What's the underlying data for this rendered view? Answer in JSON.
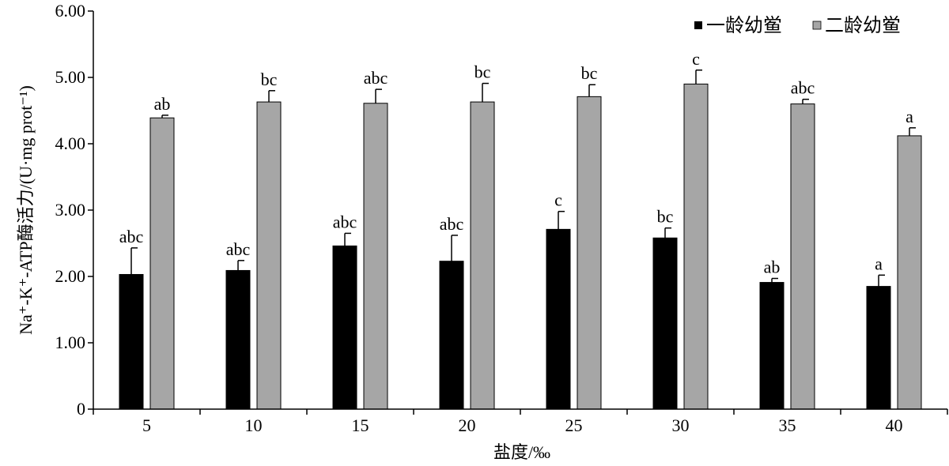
{
  "chart_data": {
    "type": "bar",
    "title": "",
    "xlabel": "盐度/‰",
    "ylabel": "Na⁺-K⁺-ATP酶活力/(U·mg prot⁻¹)",
    "categories": [
      "5",
      "10",
      "15",
      "20",
      "25",
      "30",
      "35",
      "40"
    ],
    "ylim": [
      0,
      6
    ],
    "yticks": [
      "0",
      "1.00",
      "2.00",
      "3.00",
      "4.00",
      "5.00",
      "6.00"
    ],
    "ytick_values": [
      0,
      1,
      2,
      3,
      4,
      5,
      6
    ],
    "grid": false,
    "legend_position": "top-right",
    "series": [
      {
        "name": "一龄幼鲎",
        "color": "#000000",
        "values": [
          2.03,
          2.09,
          2.46,
          2.23,
          2.71,
          2.58,
          1.91,
          1.85
        ],
        "errors": [
          0.4,
          0.15,
          0.19,
          0.39,
          0.27,
          0.15,
          0.06,
          0.17
        ],
        "labels": [
          "abc",
          "abc",
          "abc",
          "abc",
          "c",
          "bc",
          "ab",
          "a"
        ]
      },
      {
        "name": "二龄幼鲎",
        "color": "#a6a6a6",
        "values": [
          4.39,
          4.63,
          4.61,
          4.63,
          4.71,
          4.9,
          4.6,
          4.12
        ],
        "errors": [
          0.04,
          0.17,
          0.21,
          0.28,
          0.18,
          0.21,
          0.07,
          0.12
        ],
        "labels": [
          "ab",
          "bc",
          "abc",
          "bc",
          "bc",
          "c",
          "abc",
          "a"
        ]
      }
    ]
  }
}
